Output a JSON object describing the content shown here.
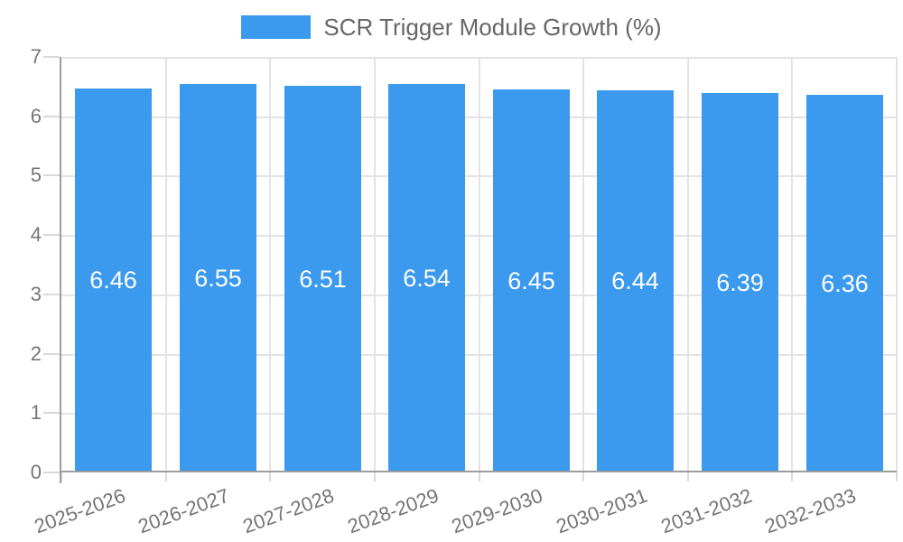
{
  "legend": {
    "label": "SCR Trigger Module Growth (%)"
  },
  "colors": {
    "bar": "#3B99EE",
    "grid": "#e3e3e3",
    "axis": "#9d9d9d",
    "tick": "#d9d9d9",
    "axis_text": "#757575",
    "legend_text": "#666666",
    "value_text": "#ffffff",
    "background": "#ffffff"
  },
  "chart_data": {
    "type": "bar",
    "title": "SCR Trigger Module Growth (%)",
    "categories": [
      "2025-2026",
      "2026-2027",
      "2027-2028",
      "2028-2029",
      "2029-2030",
      "2030-2031",
      "2031-2032",
      "2032-2033"
    ],
    "series": [
      {
        "name": "SCR Trigger Module Growth (%)",
        "values": [
          6.46,
          6.55,
          6.51,
          6.54,
          6.45,
          6.44,
          6.39,
          6.36
        ]
      }
    ],
    "xlabel": "",
    "ylabel": "",
    "ylim": [
      0,
      7
    ],
    "ytick_step": 1,
    "grid": true,
    "legend_position": "top",
    "value_labels": "inside-center",
    "value_label_decimals": 2,
    "x_tick_rotation_deg": -20
  }
}
